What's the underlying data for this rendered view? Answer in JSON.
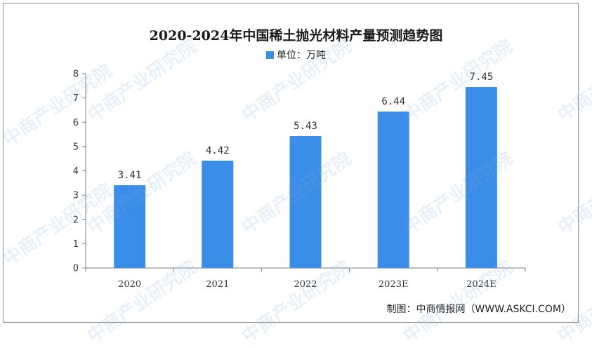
{
  "chart_data": {
    "type": "bar",
    "title": "2020-2024年中国稀土抛光材料产量预测趋势图",
    "categories": [
      "2020",
      "2021",
      "2022",
      "2023E",
      "2024E"
    ],
    "series": [
      {
        "name": "单位：万吨",
        "values": [
          3.41,
          4.42,
          5.43,
          6.44,
          7.45
        ]
      }
    ],
    "data_labels": [
      "3.41",
      "4.42",
      "5.43",
      "6.44",
      "7.45"
    ],
    "yticks": [
      "0",
      "1",
      "2",
      "3",
      "4",
      "5",
      "6",
      "7",
      "8"
    ],
    "ylim": [
      0,
      8
    ],
    "grid": false,
    "legend_position": "top-center",
    "bar_color": "#3b8ee8"
  },
  "footer": "制图：中商情报网（WWW.ASKCI.COM）",
  "watermark": "中商产业研究院"
}
